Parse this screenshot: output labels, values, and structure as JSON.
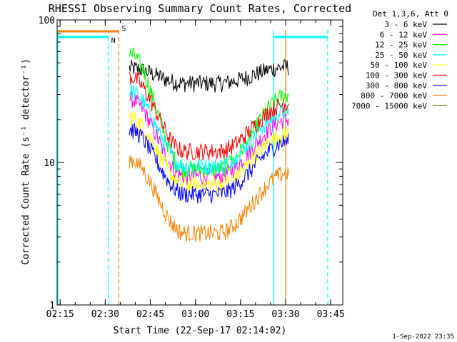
{
  "chart_data": {
    "type": "line",
    "title": "RHESSI Observing Summary Count Rates, Corrected",
    "xlabel": "Start Time (22-Sep-17 02:14:02)",
    "ylabel": "Corrected Count Rate (s⁻¹ detector⁻¹)",
    "y_scale": "log",
    "xlim_minutes": [
      0,
      95
    ],
    "ylim": [
      1,
      100
    ],
    "x_ticks": [
      {
        "label": "02:15",
        "minutes": 1
      },
      {
        "label": "02:30",
        "minutes": 16
      },
      {
        "label": "02:45",
        "minutes": 31
      },
      {
        "label": "03:00",
        "minutes": 46
      },
      {
        "label": "03:15",
        "minutes": 61
      },
      {
        "label": "03:30",
        "minutes": 76
      },
      {
        "label": "03:45",
        "minutes": 91
      }
    ],
    "y_ticks": [
      {
        "label": "1",
        "value": 1
      },
      {
        "label": "10",
        "value": 10
      },
      {
        "label": "100",
        "value": 100
      }
    ],
    "legend_title": "Det 1,3,6, Att 0",
    "legend_placement": "right",
    "series": [
      {
        "name": "3 - 6 keV",
        "color": "#000000",
        "start": 46,
        "min": 36,
        "end": 47
      },
      {
        "name": "6 - 12 keV",
        "color": "#ff00ff",
        "start": 28,
        "min": 8,
        "end": 20
      },
      {
        "name": "12 - 25 keV",
        "color": "#00ff00",
        "start": 58,
        "min": 9,
        "end": 30
      },
      {
        "name": "25 - 50 keV",
        "color": "#00ffff",
        "start": 32,
        "min": 9.5,
        "end": 23
      },
      {
        "name": "50 - 100 keV",
        "color": "#ffff00",
        "start": 21,
        "min": 7,
        "end": 16
      },
      {
        "name": "100 - 300 keV",
        "color": "#ff0000",
        "start": 40,
        "min": 12,
        "end": 26
      },
      {
        "name": "300 - 800 keV",
        "color": "#0000ff",
        "start": 17,
        "min": 6,
        "end": 14
      },
      {
        "name": "800 - 7000 keV",
        "color": "#ff8000",
        "start": 10.5,
        "min": 3.2,
        "end": 8.5
      },
      {
        "name": "7000 - 15000 keV",
        "color": "#808000",
        "start": 0,
        "min": 0,
        "end": 0
      }
    ],
    "data_window_minutes": [
      24,
      77
    ],
    "step_lines": [
      {
        "name": "saa-flag",
        "label": "S",
        "color": "#ff8000",
        "x_from": 0,
        "x_to": 20.5,
        "level": 85
      },
      {
        "name": "night-flag",
        "label": "N",
        "color": "#00ffff",
        "x_from": 0,
        "x_to": 17,
        "level": 75
      },
      {
        "name": "night-flag-right",
        "label": "",
        "color": "#00ffff",
        "x_from": 72,
        "x_to": 90,
        "level": 75
      }
    ],
    "vertical_markers": [
      {
        "name": "night-start-dashed",
        "color": "#00ffff",
        "minutes": 17,
        "style": "dashed"
      },
      {
        "name": "saa-end-dashed",
        "color": "#ff8000",
        "minutes": 20.5,
        "style": "dashed"
      },
      {
        "name": "night-solid-left",
        "color": "#00ffff",
        "minutes": 0,
        "style": "solid"
      },
      {
        "name": "night-solid-right",
        "color": "#00ffff",
        "minutes": 72,
        "style": "solid"
      },
      {
        "name": "night-end-dashed",
        "color": "#00ffff",
        "minutes": 90,
        "style": "dashed"
      },
      {
        "name": "saa-solid-right",
        "color": "#ff8000",
        "minutes": 76,
        "style": "solid"
      }
    ]
  },
  "footer": {
    "timestamp": "1-Sep-2022 23:35"
  }
}
